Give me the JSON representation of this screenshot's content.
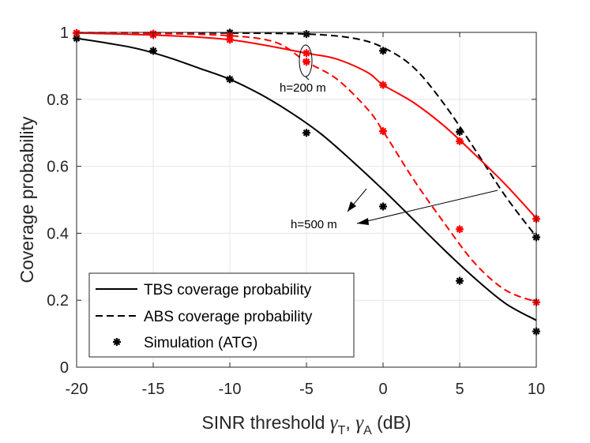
{
  "chart_data": {
    "type": "line",
    "xlabel": "SINR threshold",
    "xlabel_symbols": [
      "γ",
      "T",
      "γ",
      "A"
    ],
    "xlabel_unit": "(dB)",
    "ylabel": "Coverage probability",
    "xlim": [
      -20,
      10
    ],
    "ylim": [
      0,
      1
    ],
    "xticks": [
      -20,
      -15,
      -10,
      -5,
      0,
      5,
      10
    ],
    "xtick_labels": [
      "-20",
      "-15",
      "-10",
      "-5",
      "0",
      "5",
      "10"
    ],
    "yticks": [
      0,
      0.2,
      0.4,
      0.6,
      0.8,
      1
    ],
    "ytick_labels": [
      "0",
      "0.2",
      "0.4",
      "0.6",
      "0.8",
      "1"
    ],
    "grid": true,
    "legend": {
      "location": "bottom-left",
      "entries": [
        {
          "label": "TBS coverage probability",
          "style": "solid"
        },
        {
          "label": "ABS coverage probability",
          "style": "dashed"
        },
        {
          "label": "Simulation (ATG)",
          "style": "marker"
        }
      ]
    },
    "series": [
      {
        "name": "TBS h=500 m",
        "color": "#000000",
        "style": "solid",
        "x": [
          -20,
          -18,
          -16,
          -14,
          -12,
          -10,
          -8,
          -6,
          -4,
          -2,
          0,
          2,
          4,
          6,
          8,
          10
        ],
        "y": [
          0.982,
          0.968,
          0.951,
          0.925,
          0.893,
          0.86,
          0.815,
          0.76,
          0.695,
          0.615,
          0.53,
          0.44,
          0.35,
          0.265,
          0.19,
          0.14
        ]
      },
      {
        "name": "ABS h=500 m",
        "color": "#000000",
        "style": "dashed",
        "x": [
          -20,
          -15,
          -10,
          -5,
          -2,
          0,
          2,
          4,
          6,
          8,
          10
        ],
        "y": [
          0.999,
          0.999,
          0.998,
          0.995,
          0.983,
          0.955,
          0.895,
          0.785,
          0.65,
          0.51,
          0.39
        ]
      },
      {
        "name": "TBS h=200 m",
        "color": "#ff0000",
        "style": "solid",
        "x": [
          -20,
          -15,
          -10,
          -5,
          -3,
          -1,
          0,
          2,
          4,
          6,
          8,
          10
        ],
        "y": [
          0.998,
          0.992,
          0.978,
          0.938,
          0.92,
          0.88,
          0.843,
          0.79,
          0.72,
          0.635,
          0.545,
          0.445
        ]
      },
      {
        "name": "ABS h=200 m",
        "color": "#ff0000",
        "style": "dashed",
        "x": [
          -20,
          -15,
          -10,
          -7,
          -5,
          -3,
          -1,
          0,
          2,
          4,
          6,
          8,
          10
        ],
        "y": [
          0.999,
          0.997,
          0.99,
          0.97,
          0.912,
          0.86,
          0.77,
          0.705,
          0.56,
          0.43,
          0.31,
          0.23,
          0.195
        ]
      },
      {
        "name": "Simulation TBS h=500 m",
        "color": "#000000",
        "style": "marker",
        "x": [
          -20,
          -15,
          -10,
          -5,
          0,
          5,
          10
        ],
        "y": [
          0.982,
          0.945,
          0.86,
          0.7,
          0.48,
          0.258,
          0.107
        ]
      },
      {
        "name": "Simulation ABS h=500 m",
        "color": "#000000",
        "style": "marker",
        "x": [
          -10,
          -5,
          0,
          5,
          10
        ],
        "y": [
          0.999,
          0.995,
          0.945,
          0.703,
          0.388
        ]
      },
      {
        "name": "Simulation TBS h=200 m",
        "color": "#ff0000",
        "style": "marker",
        "x": [
          -20,
          -15,
          -10,
          -5,
          0,
          5,
          10
        ],
        "y": [
          0.998,
          0.992,
          0.978,
          0.938,
          0.843,
          0.675,
          0.443
        ]
      },
      {
        "name": "Simulation ABS h=200 m",
        "color": "#ff0000",
        "style": "marker",
        "x": [
          -20,
          -15,
          -10,
          -5,
          0,
          5,
          10
        ],
        "y": [
          0.998,
          0.996,
          0.99,
          0.912,
          0.705,
          0.412,
          0.194
        ]
      }
    ],
    "annotations": [
      {
        "text": "h=200 m",
        "points_to": "ellipse around markers at x=-5 (h=200 m curves)"
      },
      {
        "text": "h=500 m",
        "points_to": "arrows toward h=500 m curves"
      }
    ]
  }
}
